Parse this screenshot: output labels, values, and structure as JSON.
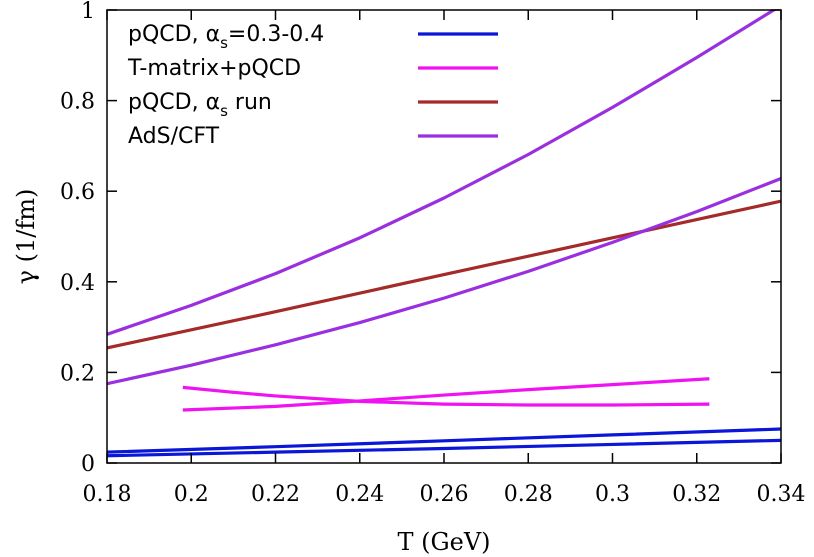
{
  "chart_data": {
    "type": "line",
    "xlabel": "T (GeV)",
    "ylabel": "γ (1/fm)",
    "xlim": [
      0.18,
      0.34
    ],
    "ylim": [
      0,
      1
    ],
    "x_ticks": [
      "0.18",
      "0.2",
      "0.22",
      "0.24",
      "0.26",
      "0.28",
      "0.3",
      "0.32",
      "0.34"
    ],
    "y_ticks": [
      "0",
      "0.2",
      "0.4",
      "0.6",
      "0.8",
      "1"
    ],
    "legend": {
      "position": "top-left",
      "entries": [
        {
          "label": "pQCD, α",
          "subscript": "s",
          "suffix": "=0.3-0.4",
          "color": "#0a16d8"
        },
        {
          "label": "T-matrix+pQCD",
          "subscript": "",
          "suffix": "",
          "color": "#f012f0"
        },
        {
          "label": "pQCD, α",
          "subscript": "s",
          "suffix": " run",
          "color": "#a52a2a"
        },
        {
          "label": "AdS/CFT",
          "subscript": "",
          "suffix": "",
          "color": "#9a2fe0"
        }
      ]
    },
    "series": [
      {
        "group": "pQCD, αs=0.3-0.4",
        "color": "#0a16d8",
        "points": [
          [
            0.18,
            0.024
          ],
          [
            0.22,
            0.036
          ],
          [
            0.26,
            0.049
          ],
          [
            0.3,
            0.062
          ],
          [
            0.34,
            0.075
          ]
        ]
      },
      {
        "group": "pQCD, αs=0.3-0.4",
        "color": "#0a16d8",
        "points": [
          [
            0.18,
            0.016
          ],
          [
            0.22,
            0.024
          ],
          [
            0.26,
            0.032
          ],
          [
            0.3,
            0.041
          ],
          [
            0.34,
            0.05
          ]
        ]
      },
      {
        "group": "T-matrix+pQCD",
        "color": "#f012f0",
        "points": [
          [
            0.198,
            0.117
          ],
          [
            0.22,
            0.125
          ],
          [
            0.24,
            0.137
          ],
          [
            0.26,
            0.15
          ],
          [
            0.28,
            0.162
          ],
          [
            0.3,
            0.173
          ],
          [
            0.323,
            0.186
          ]
        ]
      },
      {
        "group": "T-matrix+pQCD",
        "color": "#f012f0",
        "points": [
          [
            0.198,
            0.167
          ],
          [
            0.21,
            0.156
          ],
          [
            0.22,
            0.148
          ],
          [
            0.24,
            0.136
          ],
          [
            0.26,
            0.13
          ],
          [
            0.28,
            0.128
          ],
          [
            0.3,
            0.128
          ],
          [
            0.323,
            0.13
          ]
        ]
      },
      {
        "group": "pQCD, αs run",
        "color": "#a52a2a",
        "points": [
          [
            0.18,
            0.254
          ],
          [
            0.22,
            0.334
          ],
          [
            0.26,
            0.416
          ],
          [
            0.3,
            0.497
          ],
          [
            0.34,
            0.578
          ]
        ]
      },
      {
        "group": "AdS/CFT",
        "color": "#9a2fe0",
        "points": [
          [
            0.18,
            0.284
          ],
          [
            0.2,
            0.348
          ],
          [
            0.22,
            0.418
          ],
          [
            0.24,
            0.497
          ],
          [
            0.26,
            0.585
          ],
          [
            0.28,
            0.681
          ],
          [
            0.3,
            0.785
          ],
          [
            0.32,
            0.895
          ],
          [
            0.34,
            1.01
          ]
        ]
      },
      {
        "group": "AdS/CFT",
        "color": "#9a2fe0",
        "points": [
          [
            0.18,
            0.175
          ],
          [
            0.2,
            0.216
          ],
          [
            0.22,
            0.261
          ],
          [
            0.24,
            0.31
          ],
          [
            0.26,
            0.364
          ],
          [
            0.28,
            0.423
          ],
          [
            0.3,
            0.487
          ],
          [
            0.32,
            0.555
          ],
          [
            0.34,
            0.628
          ]
        ]
      }
    ]
  }
}
